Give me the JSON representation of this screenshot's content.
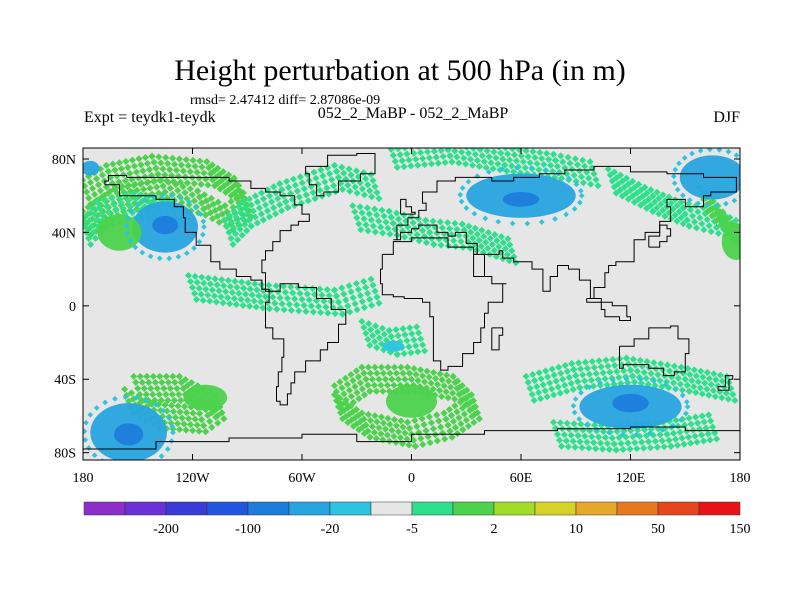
{
  "header": {
    "title": "Height perturbation at 500 hPa (in m)",
    "stats": "rmsd= 2.47412 diff= 2.87086e-09",
    "expt": "Expt = teydk1-teydk",
    "runs": "052_2_MaBP - 052_2_MaBP",
    "season": "DJF"
  },
  "chart_data": {
    "type": "heatmap",
    "title": "Height perturbation at 500 hPa (in m)",
    "subtitle": "052_2_MaBP - 052_2_MaBP",
    "projection": "cylindrical-equidistant",
    "xlim": [
      -180,
      180
    ],
    "ylim": [
      -90,
      90
    ],
    "x_ticks": [
      {
        "value": -180,
        "label": "180"
      },
      {
        "value": -120,
        "label": "120W"
      },
      {
        "value": -60,
        "label": "60W"
      },
      {
        "value": 0,
        "label": "0"
      },
      {
        "value": 60,
        "label": "60E"
      },
      {
        "value": 120,
        "label": "120E"
      },
      {
        "value": 180,
        "label": "180"
      }
    ],
    "y_ticks": [
      {
        "value": 80,
        "label": "80N"
      },
      {
        "value": 40,
        "label": "40N"
      },
      {
        "value": 0,
        "label": "0"
      },
      {
        "value": -40,
        "label": "40S"
      },
      {
        "value": -80,
        "label": "80S"
      }
    ],
    "colorbar": {
      "colors": [
        "#8e2ec8",
        "#6b30d6",
        "#3a3ad6",
        "#2255dd",
        "#1e7cdc",
        "#28a4e0",
        "#2ec4e0",
        "#e6e6e6",
        "#2ee08c",
        "#4cd24c",
        "#a0dc28",
        "#d7d22a",
        "#e6a82a",
        "#e6781e",
        "#e6461e",
        "#e61414"
      ],
      "labels": [
        {
          "after_index": 1,
          "text": "-200"
        },
        {
          "after_index": 3,
          "text": "-100"
        },
        {
          "after_index": 5,
          "text": "-20"
        },
        {
          "after_index": 7,
          "text": "-5"
        },
        {
          "after_index": 9,
          "text": "2"
        },
        {
          "after_index": 11,
          "text": "10"
        },
        {
          "after_index": 13,
          "text": "50"
        },
        {
          "after_index": 15,
          "text": "150"
        }
      ]
    },
    "features": [
      {
        "name": "nw-atlantic-arc",
        "kind": "hatched-positive",
        "color": "#4cd24c",
        "points": [
          [
            -178,
            62
          ],
          [
            -165,
            70
          ],
          [
            -140,
            75
          ],
          [
            -110,
            72
          ],
          [
            -95,
            63
          ],
          [
            -90,
            55
          ],
          [
            -100,
            48
          ],
          [
            -115,
            56
          ],
          [
            -135,
            62
          ],
          [
            -160,
            58
          ],
          [
            -178,
            45
          ]
        ]
      },
      {
        "name": "west-arc-lower",
        "kind": "hatched-positive",
        "color": "#2ee08c",
        "points": [
          [
            -178,
            40
          ],
          [
            -170,
            50
          ],
          [
            -150,
            55
          ],
          [
            -130,
            50
          ]
        ]
      },
      {
        "name": "na-east-band",
        "kind": "hatched-positive",
        "color": "#2ee08c",
        "points": [
          [
            -100,
            40
          ],
          [
            -90,
            50
          ],
          [
            -70,
            60
          ],
          [
            -40,
            70
          ],
          [
            -20,
            65
          ]
        ]
      },
      {
        "name": "europe-band",
        "kind": "hatched-positive",
        "color": "#2ee08c",
        "points": [
          [
            -30,
            48
          ],
          [
            -10,
            45
          ],
          [
            10,
            40
          ],
          [
            30,
            38
          ],
          [
            55,
            30
          ]
        ]
      },
      {
        "name": "scandinavia-band",
        "kind": "hatched-positive",
        "color": "#2ee08c",
        "points": [
          [
            -10,
            82
          ],
          [
            20,
            85
          ],
          [
            50,
            80
          ],
          [
            80,
            76
          ],
          [
            100,
            72
          ]
        ]
      },
      {
        "name": "east-asia-band",
        "kind": "hatched-positive",
        "color": "#2ee08c",
        "points": [
          [
            110,
            68
          ],
          [
            130,
            58
          ],
          [
            150,
            50
          ],
          [
            170,
            45
          ],
          [
            180,
            40
          ]
        ]
      },
      {
        "name": "pacific-mid",
        "kind": "hatched-positive",
        "color": "#4cd24c",
        "points": [
          [
            160,
            58
          ],
          [
            170,
            48
          ],
          [
            178,
            38
          ]
        ]
      },
      {
        "name": "south-atlantic-ring",
        "kind": "hatched-positive",
        "color": "#4cd24c",
        "points": [
          [
            -40,
            -50
          ],
          [
            -25,
            -40
          ],
          [
            0,
            -40
          ],
          [
            25,
            -45
          ],
          [
            35,
            -55
          ],
          [
            20,
            -65
          ],
          [
            0,
            -70
          ],
          [
            -25,
            -65
          ],
          [
            -40,
            -55
          ]
        ]
      },
      {
        "name": "south-pacific-ring",
        "kind": "hatched-positive",
        "color": "#4cd24c",
        "points": [
          [
            -150,
            -45
          ],
          [
            -125,
            -45
          ],
          [
            -105,
            -55
          ],
          [
            -115,
            -62
          ],
          [
            -140,
            -60
          ],
          [
            -155,
            -52
          ]
        ]
      },
      {
        "name": "south-indian-band",
        "kind": "hatched-positive",
        "color": "#2ee08c",
        "points": [
          [
            65,
            -45
          ],
          [
            90,
            -38
          ],
          [
            120,
            -35
          ],
          [
            150,
            -40
          ],
          [
            175,
            -45
          ]
        ]
      },
      {
        "name": "southern-ocean-band",
        "kind": "hatched-positive",
        "color": "#2ee08c",
        "points": [
          [
            80,
            -70
          ],
          [
            110,
            -72
          ],
          [
            140,
            -70
          ],
          [
            165,
            -66
          ]
        ]
      },
      {
        "name": "tropical-atlantic-patch",
        "kind": "hatched-positive",
        "color": "#2ee08c",
        "points": [
          [
            -25,
            -15
          ],
          [
            -10,
            -20
          ],
          [
            5,
            -18
          ]
        ]
      },
      {
        "name": "central-pacific-dots",
        "kind": "hatched-positive",
        "color": "#2ee08c",
        "points": [
          [
            -120,
            10
          ],
          [
            -80,
            5
          ],
          [
            -40,
            2
          ],
          [
            -20,
            8
          ]
        ]
      },
      {
        "name": "north-pacific-low",
        "kind": "negative-blob",
        "color": "#28a4e0",
        "center": [
          -135,
          43
        ],
        "radii": [
          18,
          14
        ]
      },
      {
        "name": "north-pacific-low-core",
        "kind": "negative-blob",
        "color": "#1e7cdc",
        "center": [
          -135,
          44
        ],
        "radii": [
          7,
          5
        ]
      },
      {
        "name": "asia-north-low",
        "kind": "negative-blob",
        "color": "#28a4e0",
        "center": [
          60,
          60
        ],
        "radii": [
          30,
          12
        ]
      },
      {
        "name": "asia-north-low-core",
        "kind": "negative-blob",
        "color": "#1e7cdc",
        "center": [
          60,
          58
        ],
        "radii": [
          10,
          4
        ]
      },
      {
        "name": "arctic-low",
        "kind": "negative-blob",
        "color": "#28a4e0",
        "center": [
          165,
          70
        ],
        "radii": [
          18,
          12
        ]
      },
      {
        "name": "arctic-low-west",
        "kind": "negative-blob",
        "color": "#28a4e0",
        "center": [
          -176,
          75
        ],
        "radii": [
          5,
          4
        ]
      },
      {
        "name": "south-pacific-low",
        "kind": "negative-blob",
        "color": "#28a4e0",
        "center": [
          -155,
          -69
        ],
        "radii": [
          21,
          16
        ]
      },
      {
        "name": "south-pacific-low-core",
        "kind": "negative-blob",
        "color": "#1e7cdc",
        "center": [
          -155,
          -70
        ],
        "radii": [
          8,
          6
        ]
      },
      {
        "name": "south-indian-low",
        "kind": "negative-blob",
        "color": "#28a4e0",
        "center": [
          120,
          -55
        ],
        "radii": [
          28,
          12
        ]
      },
      {
        "name": "south-indian-low-core",
        "kind": "negative-blob",
        "color": "#1e7cdc",
        "center": [
          120,
          -53
        ],
        "radii": [
          10,
          5
        ]
      },
      {
        "name": "south-atlantic-neg-west",
        "kind": "negative-blob",
        "color": "#2ec4e0",
        "center": [
          -10,
          -22
        ],
        "radii": [
          6,
          3
        ]
      },
      {
        "name": "south-atlantic-pos",
        "kind": "positive-blob",
        "color": "#4cd24c",
        "center": [
          0,
          -52
        ],
        "radii": [
          14,
          9
        ]
      },
      {
        "name": "south-pacific-pos",
        "kind": "positive-blob",
        "color": "#4cd24c",
        "center": [
          -113,
          -50
        ],
        "radii": [
          12,
          7
        ]
      },
      {
        "name": "nw-arc-solid",
        "kind": "positive-blob",
        "color": "#4cd24c",
        "center": [
          -160,
          40
        ],
        "radii": [
          12,
          10
        ]
      },
      {
        "name": "east-pacific-pos",
        "kind": "positive-blob",
        "color": "#4cd24c",
        "center": [
          178,
          35
        ],
        "radii": [
          8,
          10
        ]
      }
    ]
  }
}
